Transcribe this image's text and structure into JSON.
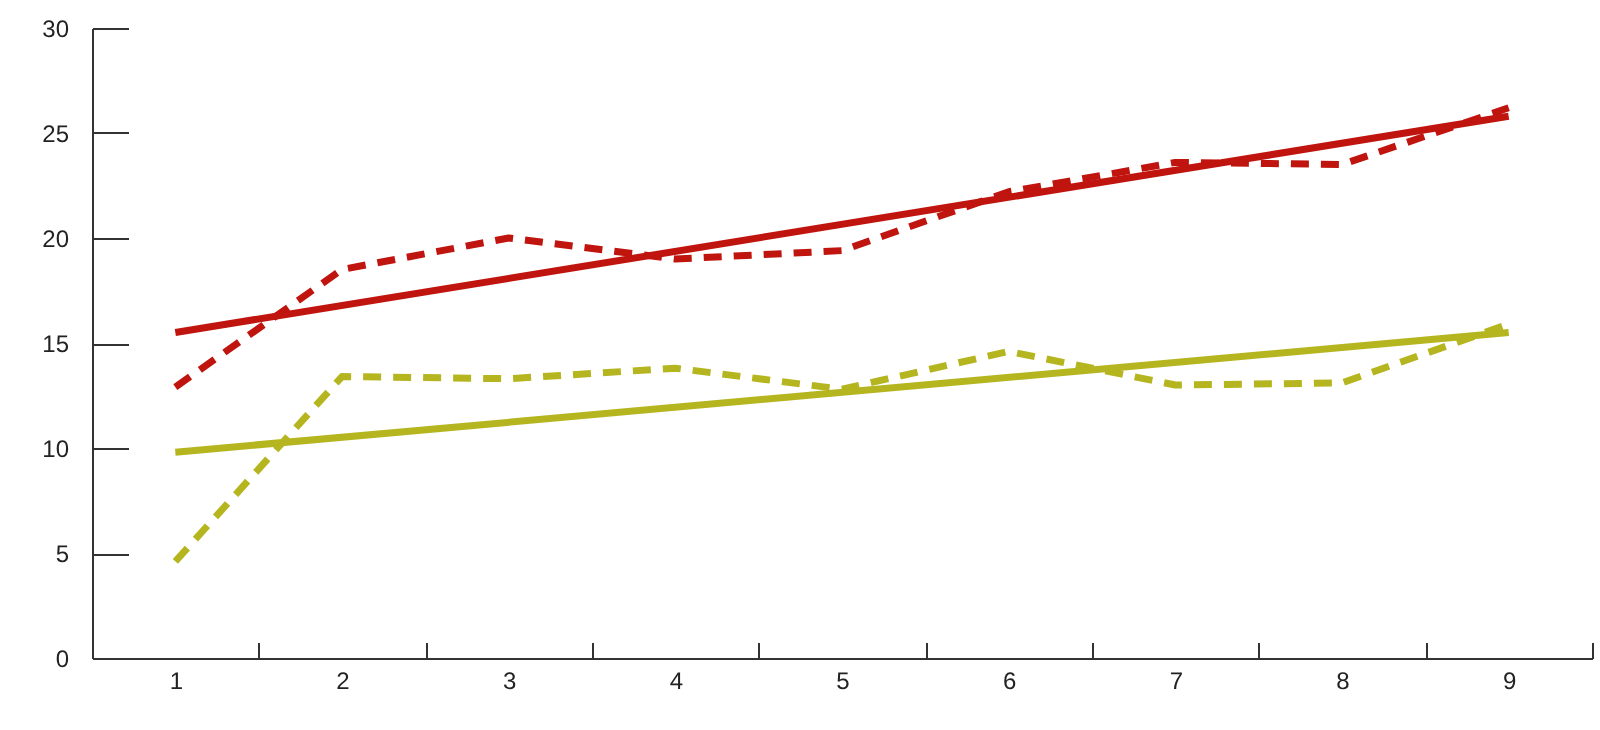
{
  "chart_data": {
    "type": "line",
    "categories": [
      "1",
      "2",
      "3",
      "4",
      "5",
      "6",
      "7",
      "8",
      "9"
    ],
    "ylim": [
      0,
      30
    ],
    "yticks": [
      0,
      5,
      10,
      15,
      20,
      25,
      30
    ],
    "series": [
      {
        "color": "#c0140f",
        "line_style": "dashed",
        "values": [
          12.9,
          18.5,
          20.0,
          19.0,
          19.4,
          22.2,
          23.6,
          23.5,
          26.2
        ]
      },
      {
        "color": "#c0140f",
        "line_style": "solid",
        "x": [
          "1",
          "9"
        ],
        "values": [
          15.5,
          25.8
        ]
      },
      {
        "color": "#b5b520",
        "line_style": "dashed",
        "values": [
          4.6,
          13.4,
          13.3,
          13.8,
          12.8,
          14.6,
          13.0,
          13.1,
          15.9
        ]
      },
      {
        "color": "#b5b520",
        "line_style": "solid",
        "x": [
          "1",
          "9"
        ],
        "values": [
          9.8,
          15.5
        ]
      }
    ]
  }
}
